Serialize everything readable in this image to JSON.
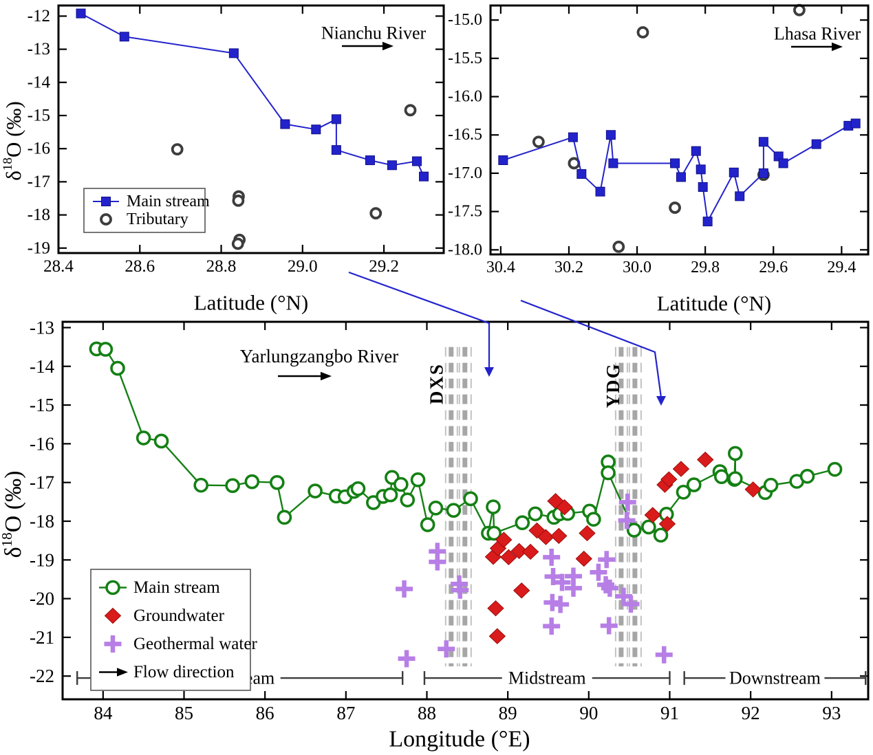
{
  "figure": {
    "background": "#ffffff",
    "ylabel_parts": {
      "base": "δ",
      "sup": "18",
      "rest": "O (‰)"
    }
  },
  "colors": {
    "main_stream_blue": "#2323cc",
    "main_stream_green": "#148014",
    "groundwater_red": "#da1b1b",
    "geothermal_purple": "#b77fe6",
    "tributary_dark": "#3d3d3d",
    "band_gray": "#a6a6a6",
    "band_gray_light": "#c2c2c2",
    "band_label_gray": "#8f8f8f",
    "annotation_arrow_blue": "#2323cc",
    "axis_black": "#000000"
  },
  "chart_data": [
    {
      "id": "nianchu",
      "type": "line",
      "river_label": "Nianchu River",
      "xlabel": "Latitude (°N)",
      "ylabel": "δ18O (‰)",
      "x_range": [
        28.4,
        29.347
      ],
      "y_range": [
        -19.15,
        -11.68
      ],
      "x_ticks": [
        {
          "v": 28.4,
          "label": "28.4"
        },
        {
          "v": 28.6,
          "label": "28.6"
        },
        {
          "v": 28.8,
          "label": "28.8"
        },
        {
          "v": 29.0,
          "label": "29.0"
        },
        {
          "v": 29.2,
          "label": "29.2"
        }
      ],
      "y_ticks": [
        {
          "v": -12,
          "label": "-12"
        },
        {
          "v": -13,
          "label": "-13"
        },
        {
          "v": -14,
          "label": "-14"
        },
        {
          "v": -15,
          "label": "-15"
        },
        {
          "v": -16,
          "label": "-16"
        },
        {
          "v": -17,
          "label": "-17"
        },
        {
          "v": -18,
          "label": "-18"
        },
        {
          "v": -19,
          "label": "-19"
        }
      ],
      "legend": [
        {
          "label": "Main stream",
          "marker": "square-line"
        },
        {
          "label": "Tributary",
          "marker": "circle-open-dark"
        }
      ],
      "series": [
        {
          "name": "Tributary",
          "marker": "circle-open-dark",
          "line": false,
          "points": [
            [
              28.692,
              -16.02
            ],
            [
              28.843,
              -17.44
            ],
            [
              28.842,
              -17.57
            ],
            [
              28.845,
              -18.75
            ],
            [
              28.841,
              -18.87
            ],
            [
              29.18,
              -17.95
            ],
            [
              29.265,
              -14.84
            ]
          ]
        },
        {
          "name": "Main stream",
          "marker": "square",
          "line": true,
          "points": [
            [
              28.455,
              -11.92
            ],
            [
              28.562,
              -12.62
            ],
            [
              28.831,
              -13.12
            ],
            [
              28.957,
              -15.26
            ],
            [
              29.033,
              -15.42
            ],
            [
              29.083,
              -15.11
            ],
            [
              29.083,
              -16.04
            ],
            [
              29.166,
              -16.35
            ],
            [
              29.22,
              -16.5
            ],
            [
              29.281,
              -16.38
            ],
            [
              29.298,
              -16.84
            ]
          ]
        }
      ]
    },
    {
      "id": "lhasa",
      "type": "line",
      "river_label": "Lhasa River",
      "xlabel": "Latitude (°N)",
      "x_range": [
        30.43,
        29.322
      ],
      "y_range": [
        -18.06,
        -14.81
      ],
      "x_ticks": [
        {
          "v": 30.4,
          "label": "30.4"
        },
        {
          "v": 30.2,
          "label": "30.2"
        },
        {
          "v": 30.0,
          "label": "30.0"
        },
        {
          "v": 29.8,
          "label": "29.8"
        },
        {
          "v": 29.6,
          "label": "29.6"
        },
        {
          "v": 29.4,
          "label": "29.4"
        }
      ],
      "y_ticks": [
        {
          "v": -15.0,
          "label": "-15.0"
        },
        {
          "v": -15.5,
          "label": "-15.5"
        },
        {
          "v": -16.0,
          "label": "-16.0"
        },
        {
          "v": -16.5,
          "label": "-16.5"
        },
        {
          "v": -17.0,
          "label": "-17.0"
        },
        {
          "v": -17.5,
          "label": "-17.5"
        },
        {
          "v": -18.0,
          "label": "-18.0"
        }
      ],
      "legend": [],
      "series": [
        {
          "name": "Tributary",
          "marker": "circle-open-dark",
          "line": false,
          "points": [
            [
              30.289,
              -16.59
            ],
            [
              30.185,
              -16.87
            ],
            [
              30.054,
              -17.96
            ],
            [
              29.983,
              -15.16
            ],
            [
              29.889,
              -17.45
            ],
            [
              29.629,
              -17.02
            ],
            [
              29.524,
              -14.87
            ]
          ]
        },
        {
          "name": "Main stream",
          "marker": "square",
          "line": true,
          "points": [
            [
              30.393,
              -16.83
            ],
            [
              30.188,
              -16.53
            ],
            [
              30.163,
              -17.01
            ],
            [
              30.108,
              -17.24
            ],
            [
              30.077,
              -16.5
            ],
            [
              30.07,
              -16.87
            ],
            [
              29.889,
              -16.87
            ],
            [
              29.871,
              -17.05
            ],
            [
              29.827,
              -16.71
            ],
            [
              29.813,
              -16.95
            ],
            [
              29.807,
              -17.18
            ],
            [
              29.793,
              -17.63
            ],
            [
              29.716,
              -16.99
            ],
            [
              29.699,
              -17.3
            ],
            [
              29.629,
              -17.0
            ],
            [
              29.629,
              -16.59
            ],
            [
              29.585,
              -16.78
            ],
            [
              29.571,
              -16.87
            ],
            [
              29.474,
              -16.62
            ],
            [
              29.38,
              -16.38
            ],
            [
              29.359,
              -16.35
            ]
          ]
        }
      ]
    },
    {
      "id": "yarlungzangbo",
      "type": "line",
      "river_label": "Yarlungzangbo River",
      "xlabel": "Longitude (°E)",
      "ylabel": "δ18O (‰)",
      "x_range": [
        83.5,
        93.452
      ],
      "y_range": [
        -22.6,
        -12.85
      ],
      "x_ticks": [
        {
          "v": 84,
          "label": "84"
        },
        {
          "v": 85,
          "label": "85"
        },
        {
          "v": 86,
          "label": "86"
        },
        {
          "v": 87,
          "label": "87"
        },
        {
          "v": 88,
          "label": "88"
        },
        {
          "v": 89,
          "label": "89"
        },
        {
          "v": 90,
          "label": "90"
        },
        {
          "v": 91,
          "label": "91"
        },
        {
          "v": 92,
          "label": "92"
        },
        {
          "v": 93,
          "label": "93"
        }
      ],
      "y_ticks": [
        {
          "v": -13,
          "label": "-13"
        },
        {
          "v": -14,
          "label": "-14"
        },
        {
          "v": -15,
          "label": "-15"
        },
        {
          "v": -16,
          "label": "-16"
        },
        {
          "v": -17,
          "label": "-17"
        },
        {
          "v": -18,
          "label": "-18"
        },
        {
          "v": -19,
          "label": "-19"
        },
        {
          "v": -20,
          "label": "-20"
        },
        {
          "v": -21,
          "label": "-21"
        },
        {
          "v": -22,
          "label": "-22"
        }
      ],
      "bands": [
        {
          "label": "DXS",
          "lines": [
            88.3,
            88.47
          ],
          "y_span": [
            -13.5,
            -21.75
          ],
          "label_pos": [
            88.12,
            -14.45
          ]
        },
        {
          "label": "YDG",
          "lines": [
            90.4,
            90.57
          ],
          "y_span": [
            -13.5,
            -21.75
          ],
          "label_pos": [
            90.3,
            -14.49
          ]
        }
      ],
      "regions": {
        "y": -22.05,
        "items": [
          {
            "label": "Upstream",
            "from": 83.68,
            "to": 87.7
          },
          {
            "label": "Midstream",
            "from": 87.97,
            "to": 91.0
          },
          {
            "label": "Downstream",
            "from": 91.18,
            "to": 93.42
          }
        ]
      },
      "legend": [
        {
          "label": "Main stream",
          "marker": "circle-line-green"
        },
        {
          "label": "Groundwater",
          "marker": "diamond"
        },
        {
          "label": "Geothermal water",
          "marker": "plus"
        },
        {
          "label": "Flow direction",
          "marker": "arrow"
        }
      ],
      "series": [
        {
          "name": "Main stream",
          "marker": "circle-open-green",
          "line": true,
          "points": [
            [
              83.92,
              -13.55
            ],
            [
              84.03,
              -13.56
            ],
            [
              84.18,
              -14.05
            ],
            [
              84.5,
              -15.85
            ],
            [
              84.72,
              -15.93
            ],
            [
              85.21,
              -17.07
            ],
            [
              85.6,
              -17.08
            ],
            [
              85.84,
              -16.98
            ],
            [
              86.15,
              -17.0
            ],
            [
              86.24,
              -17.9
            ],
            [
              86.62,
              -17.22
            ],
            [
              86.88,
              -17.35
            ],
            [
              86.99,
              -17.37
            ],
            [
              87.1,
              -17.23
            ],
            [
              87.15,
              -17.16
            ],
            [
              87.34,
              -17.52
            ],
            [
              87.46,
              -17.36
            ],
            [
              87.55,
              -17.32
            ],
            [
              87.57,
              -16.87
            ],
            [
              87.68,
              -17.05
            ],
            [
              87.76,
              -17.45
            ],
            [
              87.89,
              -16.93
            ],
            [
              88.01,
              -18.09
            ],
            [
              88.11,
              -17.66
            ],
            [
              88.33,
              -17.72
            ],
            [
              88.54,
              -17.42
            ],
            [
              88.76,
              -18.31
            ],
            [
              88.82,
              -17.63
            ],
            [
              88.83,
              -18.31
            ],
            [
              89.18,
              -18.04
            ],
            [
              89.34,
              -17.81
            ],
            [
              89.57,
              -17.9
            ],
            [
              89.64,
              -17.81
            ],
            [
              89.74,
              -17.8
            ],
            [
              90.01,
              -17.74
            ],
            [
              90.06,
              -17.95
            ],
            [
              90.24,
              -16.47
            ],
            [
              90.24,
              -16.75
            ],
            [
              90.56,
              -18.23
            ],
            [
              90.74,
              -18.15
            ],
            [
              90.89,
              -18.36
            ],
            [
              90.96,
              -17.82
            ],
            [
              91.17,
              -17.25
            ],
            [
              91.3,
              -17.06
            ],
            [
              91.62,
              -16.72
            ],
            [
              91.64,
              -16.85
            ],
            [
              91.8,
              -16.92
            ],
            [
              91.81,
              -16.25
            ],
            [
              91.81,
              -16.9
            ],
            [
              92.18,
              -17.26
            ],
            [
              92.25,
              -17.07
            ],
            [
              92.57,
              -16.97
            ],
            [
              92.7,
              -16.84
            ],
            [
              93.04,
              -16.66
            ]
          ]
        },
        {
          "name": "Groundwater",
          "marker": "diamond",
          "line": false,
          "points": [
            [
              88.82,
              -18.92
            ],
            [
              88.88,
              -18.7
            ],
            [
              88.95,
              -18.48
            ],
            [
              89.01,
              -18.93
            ],
            [
              89.14,
              -18.77
            ],
            [
              89.28,
              -18.79
            ],
            [
              89.17,
              -19.79
            ],
            [
              88.85,
              -20.25
            ],
            [
              88.87,
              -20.97
            ],
            [
              89.36,
              -18.24
            ],
            [
              89.47,
              -18.41
            ],
            [
              89.63,
              -18.38
            ],
            [
              89.59,
              -17.48
            ],
            [
              89.7,
              -17.64
            ],
            [
              89.94,
              -18.97
            ],
            [
              89.98,
              -18.31
            ],
            [
              90.79,
              -17.84
            ],
            [
              90.97,
              -18.07
            ],
            [
              90.94,
              -17.06
            ],
            [
              90.99,
              -16.92
            ],
            [
              91.14,
              -16.65
            ],
            [
              91.44,
              -16.41
            ],
            [
              92.03,
              -17.18
            ]
          ]
        },
        {
          "name": "Geothermal water",
          "marker": "plus",
          "line": false,
          "points": [
            [
              87.72,
              -19.75
            ],
            [
              87.75,
              -21.55
            ],
            [
              88.13,
              -18.78
            ],
            [
              88.13,
              -19.05
            ],
            [
              88.24,
              -21.3
            ],
            [
              88.4,
              -19.62
            ],
            [
              88.41,
              -19.78
            ],
            [
              89.54,
              -18.93
            ],
            [
              89.56,
              -19.43
            ],
            [
              89.67,
              -19.58
            ],
            [
              89.81,
              -19.42
            ],
            [
              89.81,
              -19.73
            ],
            [
              89.55,
              -20.1
            ],
            [
              89.65,
              -20.15
            ],
            [
              89.54,
              -20.71
            ],
            [
              90.12,
              -19.32
            ],
            [
              90.22,
              -18.99
            ],
            [
              90.21,
              -19.64
            ],
            [
              90.26,
              -19.73
            ],
            [
              90.25,
              -20.7
            ],
            [
              90.43,
              -19.94
            ],
            [
              90.52,
              -20.14
            ],
            [
              90.48,
              -17.51
            ],
            [
              90.47,
              -17.98
            ],
            [
              90.93,
              -21.45
            ]
          ]
        }
      ]
    }
  ]
}
